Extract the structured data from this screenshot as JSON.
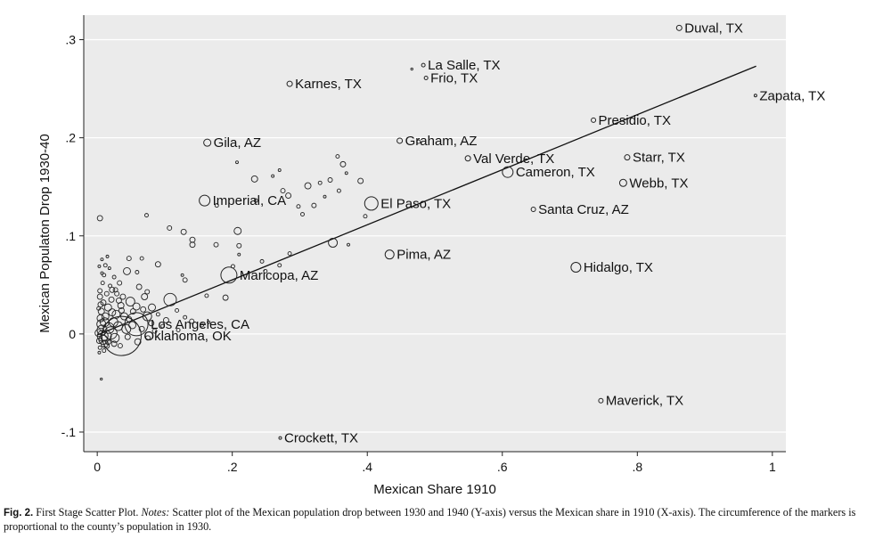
{
  "chart_data": {
    "type": "scatter",
    "title": "",
    "xlabel": "Mexican Share 1910",
    "ylabel": "Mexican Populaton Drop 1930-40",
    "xlim": [
      -0.02,
      1.02
    ],
    "ylim": [
      -0.12,
      0.325
    ],
    "x_ticks": [
      {
        "v": 0,
        "label": "0"
      },
      {
        "v": 0.2,
        "label": ".2"
      },
      {
        "v": 0.4,
        "label": ".4"
      },
      {
        "v": 0.6,
        "label": ".6"
      },
      {
        "v": 0.8,
        "label": ".8"
      },
      {
        "v": 1,
        "label": "1"
      }
    ],
    "y_ticks": [
      {
        "v": -0.1,
        "label": "-.1"
      },
      {
        "v": 0,
        "label": "0"
      },
      {
        "v": 0.1,
        "label": ".1"
      },
      {
        "v": 0.2,
        "label": ".2"
      },
      {
        "v": 0.3,
        "label": ".3"
      }
    ],
    "grid": "horizontal",
    "fit_line": {
      "x": [
        0.0,
        0.976
      ],
      "y": [
        -0.001,
        0.273
      ]
    },
    "labeled_points": [
      {
        "label": "Duval, TX",
        "x": 0.862,
        "y": 0.312,
        "r": 3
      },
      {
        "label": "La Salle, TX",
        "x": 0.483,
        "y": 0.274,
        "r": 2
      },
      {
        "label": "Frio, TX",
        "x": 0.487,
        "y": 0.261,
        "r": 2
      },
      {
        "label": "Karnes, TX",
        "x": 0.285,
        "y": 0.255,
        "r": 3
      },
      {
        "label": "Zapata, TX",
        "x": 0.975,
        "y": 0.243,
        "r": 1.5
      },
      {
        "label": "Presidio, TX",
        "x": 0.735,
        "y": 0.218,
        "r": 2.5
      },
      {
        "label": "Gila, AZ",
        "x": 0.163,
        "y": 0.195,
        "r": 4
      },
      {
        "label": "Graham, AZ",
        "x": 0.448,
        "y": 0.197,
        "r": 3
      },
      {
        "label": "Val Verde, TX",
        "x": 0.549,
        "y": 0.179,
        "r": 3
      },
      {
        "label": "Starr, TX",
        "x": 0.785,
        "y": 0.18,
        "r": 3
      },
      {
        "label": "Cameron, TX",
        "x": 0.608,
        "y": 0.165,
        "r": 6
      },
      {
        "label": "Webb, TX",
        "x": 0.779,
        "y": 0.154,
        "r": 4
      },
      {
        "label": "Imperial, CA",
        "x": 0.159,
        "y": 0.136,
        "r": 6
      },
      {
        "label": "El Paso, TX",
        "x": 0.406,
        "y": 0.133,
        "r": 7.5
      },
      {
        "label": "Santa Cruz, AZ",
        "x": 0.646,
        "y": 0.127,
        "r": 2.5
      },
      {
        "label": "Pima, AZ",
        "x": 0.433,
        "y": 0.081,
        "r": 5
      },
      {
        "label": "Hidalgo, TX",
        "x": 0.709,
        "y": 0.068,
        "r": 5.5
      },
      {
        "label": "Maricopa, AZ",
        "x": 0.195,
        "y": 0.06,
        "r": 9
      },
      {
        "label": "Los Angeles, CA",
        "x": 0.058,
        "y": 0.01,
        "r": 13
      },
      {
        "label": "Oklahoma, OK",
        "x": 0.036,
        "y": -0.002,
        "r": 22
      },
      {
        "label": "Maverick, TX",
        "x": 0.746,
        "y": -0.068,
        "r": 2.5
      },
      {
        "label": "Crockett, TX",
        "x": 0.271,
        "y": -0.106,
        "r": 1.5
      }
    ],
    "points": [
      [
        0.004,
        0.118,
        3
      ],
      [
        0.177,
        0.131,
        2
      ],
      [
        0.207,
        0.175,
        1.5
      ],
      [
        0.233,
        0.158,
        3.5
      ],
      [
        0.27,
        0.167,
        1.5
      ],
      [
        0.283,
        0.141,
        3
      ],
      [
        0.298,
        0.13,
        2
      ],
      [
        0.312,
        0.151,
        3.5
      ],
      [
        0.33,
        0.154,
        2
      ],
      [
        0.337,
        0.14,
        1.5
      ],
      [
        0.345,
        0.157,
        2.5
      ],
      [
        0.364,
        0.173,
        3
      ],
      [
        0.356,
        0.181,
        2
      ],
      [
        0.358,
        0.146,
        2
      ],
      [
        0.369,
        0.164,
        1.5
      ],
      [
        0.39,
        0.156,
        3
      ],
      [
        0.397,
        0.12,
        2
      ],
      [
        0.476,
        0.196,
        2
      ],
      [
        0.466,
        0.27,
        1.2
      ],
      [
        0.321,
        0.131,
        2.5
      ],
      [
        0.304,
        0.122,
        2
      ],
      [
        0.26,
        0.161,
        1.5
      ],
      [
        0.235,
        0.136,
        2
      ],
      [
        0.275,
        0.146,
        2.5
      ],
      [
        0.073,
        0.121,
        2
      ],
      [
        0.107,
        0.108,
        2.5
      ],
      [
        0.128,
        0.104,
        3
      ],
      [
        0.141,
        0.096,
        3
      ],
      [
        0.141,
        0.091,
        3
      ],
      [
        0.176,
        0.091,
        2.5
      ],
      [
        0.208,
        0.105,
        4
      ],
      [
        0.21,
        0.09,
        2.5
      ],
      [
        0.21,
        0.081,
        1.5
      ],
      [
        0.244,
        0.074,
        2
      ],
      [
        0.249,
        0.064,
        2
      ],
      [
        0.27,
        0.07,
        2
      ],
      [
        0.285,
        0.082,
        2
      ],
      [
        0.349,
        0.093,
        5
      ],
      [
        0.372,
        0.091,
        1.5
      ],
      [
        0.108,
        0.035,
        7
      ],
      [
        0.19,
        0.037,
        3
      ],
      [
        0.201,
        0.069,
        2
      ],
      [
        0.162,
        0.039,
        2
      ],
      [
        0.126,
        0.06,
        1.5
      ],
      [
        0.13,
        0.055,
        2.5
      ],
      [
        0.09,
        0.071,
        3
      ],
      [
        0.066,
        0.077,
        2
      ],
      [
        0.047,
        0.077,
        2.5
      ],
      [
        0.059,
        0.063,
        2
      ],
      [
        0.044,
        0.064,
        4
      ],
      [
        0.033,
        0.052,
        2.5
      ],
      [
        0.025,
        0.058,
        2
      ],
      [
        0.015,
        0.079,
        1.5
      ],
      [
        0.007,
        0.076,
        1.5
      ],
      [
        0.012,
        0.07,
        2
      ],
      [
        0.018,
        0.067,
        1.5
      ],
      [
        0.01,
        0.06,
        2
      ],
      [
        0.022,
        0.045,
        3
      ],
      [
        0.029,
        0.041,
        2.5
      ],
      [
        0.038,
        0.038,
        3
      ],
      [
        0.049,
        0.033,
        5
      ],
      [
        0.058,
        0.028,
        4
      ],
      [
        0.068,
        0.025,
        3
      ],
      [
        0.074,
        0.018,
        5
      ],
      [
        0.08,
        0.011,
        3
      ],
      [
        0.09,
        0.02,
        2
      ],
      [
        0.102,
        0.014,
        3
      ],
      [
        0.118,
        0.024,
        2
      ],
      [
        0.13,
        0.017,
        2
      ],
      [
        0.14,
        0.013,
        2.5
      ],
      [
        0.155,
        0.009,
        2
      ],
      [
        0.165,
        0.012,
        1.5
      ],
      [
        0.074,
        0.043,
        2.5
      ],
      [
        0.062,
        0.048,
        3
      ],
      [
        0.07,
        0.038,
        3.5
      ],
      [
        0.081,
        0.027,
        4
      ],
      [
        0.052,
        0.009,
        4
      ],
      [
        0.045,
        -0.003,
        3
      ],
      [
        0.06,
        -0.008,
        3.5
      ],
      [
        0.075,
        -0.004,
        2.5
      ],
      [
        0.008,
        0.052,
        2
      ],
      [
        0.004,
        0.044,
        2.5
      ],
      [
        0.004,
        0.038,
        3
      ],
      [
        0.005,
        0.03,
        3
      ],
      [
        0.006,
        0.023,
        3.5
      ],
      [
        0.005,
        0.016,
        4
      ],
      [
        0.006,
        0.01,
        5
      ],
      [
        0.007,
        0.004,
        5.5
      ],
      [
        0.008,
        -0.002,
        6
      ],
      [
        0.009,
        -0.006,
        5
      ],
      [
        0.011,
        -0.01,
        4
      ],
      [
        0.014,
        -0.012,
        3
      ],
      [
        0.017,
        0.006,
        6
      ],
      [
        0.02,
        0.001,
        7
      ],
      [
        0.024,
        0.012,
        5
      ],
      [
        0.028,
        0.02,
        4.5
      ],
      [
        0.031,
        0.008,
        5
      ],
      [
        0.016,
        0.027,
        4
      ],
      [
        0.021,
        0.035,
        3
      ],
      [
        0.012,
        0.018,
        4
      ],
      [
        0.002,
        0.001,
        4
      ],
      [
        0.003,
        -0.007,
        3
      ],
      [
        0.004,
        -0.014,
        2
      ],
      [
        0.003,
        -0.019,
        1.5
      ],
      [
        0.006,
        -0.046,
        1.2
      ],
      [
        0.002,
        0.026,
        2
      ],
      [
        0.027,
        0.045,
        2.5
      ],
      [
        0.035,
        0.029,
        3.5
      ],
      [
        0.04,
        0.018,
        4
      ],
      [
        0.043,
        0.005,
        5
      ],
      [
        0.026,
        -0.004,
        5
      ],
      [
        0.013,
        -0.002,
        6
      ],
      [
        0.032,
        0.034,
        3
      ],
      [
        0.019,
        0.049,
        2
      ],
      [
        0.014,
        0.041,
        2.5
      ],
      [
        0.009,
        0.032,
        3
      ],
      [
        0.011,
        0.012,
        5
      ],
      [
        0.022,
        0.022,
        4
      ],
      [
        0.036,
        0.024,
        3
      ],
      [
        0.047,
        0.015,
        3
      ],
      [
        0.053,
        0.023,
        3
      ],
      [
        0.066,
        0.005,
        3
      ],
      [
        0.085,
        0.003,
        2.5
      ],
      [
        0.097,
        0.008,
        2
      ],
      [
        0.12,
        0.004,
        2
      ],
      [
        0.01,
        -0.017,
        2
      ],
      [
        0.016,
        -0.008,
        3
      ],
      [
        0.025,
        -0.01,
        3
      ],
      [
        0.034,
        -0.012,
        2.5
      ],
      [
        0.007,
        0.062,
        1.5
      ],
      [
        0.003,
        0.069,
        1.5
      ]
    ]
  },
  "caption": {
    "prefix": "Fig. 2.",
    "title": " First Stage Scatter Plot. ",
    "notes_label": "Notes:",
    "body": " Scatter plot of the Mexican population drop between 1930 and 1940 (Y-axis) versus the Mexican share in 1910 (X-axis). The circumference of the markers is proportional to the county’s population in 1930."
  }
}
